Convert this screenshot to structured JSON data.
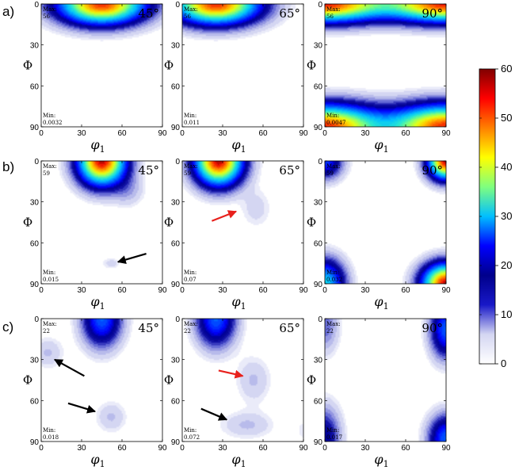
{
  "figure": {
    "row_labels": [
      "a)",
      "b)",
      "c)"
    ],
    "phi_axis_symbol": "Φ",
    "phi1_axis_symbol": "φ",
    "phi1_axis_subscript": "1",
    "x_tick_labels": [
      "0",
      "30",
      "60",
      "90"
    ],
    "y_tick_labels": [
      "0",
      "30",
      "60",
      "90"
    ]
  },
  "colorbar": {
    "min": 0,
    "max": 60,
    "ticks": [
      "0",
      "10",
      "20",
      "30",
      "40",
      "50",
      "60"
    ],
    "stops": [
      "#ffffff",
      "#d4d6f2",
      "#1818c8",
      "#00008b",
      "#0000ff",
      "#00bfff",
      "#7fff7f",
      "#ffff00",
      "#ff8000",
      "#ff0000",
      "#800000"
    ]
  },
  "chart_data": [
    {
      "type": "heatmap",
      "row": "a)",
      "angle": "45°",
      "max_label": "Max:",
      "max_value": "56",
      "min_label": "Min:",
      "min_value": "0.0032",
      "xlim": [
        0,
        90
      ],
      "ylim": [
        0,
        90
      ],
      "peaks": [
        {
          "phi1": 45,
          "Phi": 0,
          "intensity": 56,
          "spread_phi1": 22,
          "spread_Phi": 10
        }
      ],
      "arrows": []
    },
    {
      "type": "heatmap",
      "row": "a)",
      "angle": "65°",
      "max_label": "Max:",
      "max_value": "56",
      "min_label": "Min:",
      "min_value": "0.011",
      "xlim": [
        0,
        90
      ],
      "ylim": [
        0,
        90
      ],
      "peaks": [
        {
          "phi1": 25,
          "Phi": 0,
          "intensity": 56,
          "spread_phi1": 22,
          "spread_Phi": 10
        }
      ],
      "arrows": []
    },
    {
      "type": "heatmap",
      "row": "a)",
      "angle": "90°",
      "max_label": "Max:",
      "max_value": "56",
      "min_label": "Min:",
      "min_value": "0.0047",
      "xlim": [
        0,
        90
      ],
      "ylim": [
        0,
        90
      ],
      "peaks": [
        {
          "phi1": 0,
          "Phi": 0,
          "intensity": 56,
          "spread_phi1": 30,
          "spread_Phi": 9
        },
        {
          "phi1": 90,
          "Phi": 0,
          "intensity": 56,
          "spread_phi1": 30,
          "spread_Phi": 9
        },
        {
          "phi1": 0,
          "Phi": 90,
          "intensity": 56,
          "spread_phi1": 28,
          "spread_Phi": 11
        },
        {
          "phi1": 90,
          "Phi": 90,
          "intensity": 56,
          "spread_phi1": 28,
          "spread_Phi": 11
        }
      ],
      "arrows": []
    },
    {
      "type": "heatmap",
      "row": "b)",
      "angle": "45°",
      "max_label": "Max:",
      "max_value": "59",
      "min_label": "Min:",
      "min_value": "0.015",
      "xlim": [
        0,
        90
      ],
      "ylim": [
        0,
        90
      ],
      "peaks": [
        {
          "phi1": 45,
          "Phi": 0,
          "intensity": 59,
          "spread_phi1": 12,
          "spread_Phi": 12
        },
        {
          "phi1": 65,
          "Phi": 22,
          "intensity": 4,
          "spread_phi1": 8,
          "spread_Phi": 8
        },
        {
          "phi1": 52,
          "Phi": 75,
          "intensity": 3,
          "spread_phi1": 5,
          "spread_Phi": 3
        }
      ],
      "arrows": [
        {
          "color": "black",
          "phi1_tip": 57,
          "Phi_tip": 74,
          "phi1_tail": 78,
          "Phi_tail": 68
        }
      ]
    },
    {
      "type": "heatmap",
      "row": "b)",
      "angle": "65°",
      "max_label": "Max:",
      "max_value": "59",
      "min_label": "Min:",
      "min_value": "0.07",
      "xlim": [
        0,
        90
      ],
      "ylim": [
        0,
        90
      ],
      "peaks": [
        {
          "phi1": 27,
          "Phi": 0,
          "intensity": 59,
          "spread_phi1": 12,
          "spread_Phi": 12
        },
        {
          "phi1": 55,
          "Phi": 35,
          "intensity": 3,
          "spread_phi1": 8,
          "spread_Phi": 10
        }
      ],
      "arrows": [
        {
          "color": "red",
          "phi1_tip": 40,
          "Phi_tip": 37,
          "phi1_tail": 22,
          "Phi_tail": 44
        }
      ]
    },
    {
      "type": "heatmap",
      "row": "b)",
      "angle": "90°",
      "max_label": "Max:",
      "max_value": "59",
      "min_label": "Min:",
      "min_value": "0.032",
      "xlim": [
        0,
        90
      ],
      "ylim": [
        0,
        90
      ],
      "peaks": [
        {
          "phi1": 90,
          "Phi": 0,
          "intensity": 59,
          "spread_phi1": 9,
          "spread_Phi": 9
        },
        {
          "phi1": 0,
          "Phi": 0,
          "intensity": 20,
          "spread_phi1": 9,
          "spread_Phi": 9
        },
        {
          "phi1": 0,
          "Phi": 90,
          "intensity": 30,
          "spread_phi1": 10,
          "spread_Phi": 12
        },
        {
          "phi1": 90,
          "Phi": 90,
          "intensity": 59,
          "spread_phi1": 12,
          "spread_Phi": 10
        }
      ],
      "arrows": []
    },
    {
      "type": "heatmap",
      "row": "c)",
      "angle": "45°",
      "max_label": "Max:",
      "max_value": "22",
      "min_label": "Min:",
      "min_value": "0.018",
      "xlim": [
        0,
        90
      ],
      "ylim": [
        0,
        90
      ],
      "peaks": [
        {
          "phi1": 45,
          "Phi": 0,
          "intensity": 22,
          "spread_phi1": 10,
          "spread_Phi": 14
        },
        {
          "phi1": 5,
          "Phi": 25,
          "intensity": 4,
          "spread_phi1": 8,
          "spread_Phi": 8
        },
        {
          "phi1": 52,
          "Phi": 72,
          "intensity": 4,
          "spread_phi1": 8,
          "spread_Phi": 8
        }
      ],
      "arrows": [
        {
          "color": "black",
          "phi1_tip": 10,
          "Phi_tip": 30,
          "phi1_tail": 32,
          "Phi_tail": 42
        },
        {
          "color": "black",
          "phi1_tip": 40,
          "Phi_tip": 68,
          "phi1_tail": 20,
          "Phi_tail": 62
        }
      ]
    },
    {
      "type": "heatmap",
      "row": "c)",
      "angle": "65°",
      "max_label": "Max:",
      "max_value": "22",
      "min_label": "Min:",
      "min_value": "0.072",
      "xlim": [
        0,
        90
      ],
      "ylim": [
        0,
        90
      ],
      "peaks": [
        {
          "phi1": 25,
          "Phi": 0,
          "intensity": 22,
          "spread_phi1": 10,
          "spread_Phi": 14
        },
        {
          "phi1": 53,
          "Phi": 45,
          "intensity": 4,
          "spread_phi1": 9,
          "spread_Phi": 12
        },
        {
          "phi1": 48,
          "Phi": 78,
          "intensity": 4,
          "spread_phi1": 14,
          "spread_Phi": 7
        },
        {
          "phi1": 90,
          "Phi": 82,
          "intensity": 2,
          "spread_phi1": 4,
          "spread_Phi": 6
        }
      ],
      "arrows": [
        {
          "color": "red",
          "phi1_tip": 45,
          "Phi_tip": 42,
          "phi1_tail": 27,
          "Phi_tail": 38
        },
        {
          "color": "black",
          "phi1_tip": 33,
          "Phi_tip": 74,
          "phi1_tail": 14,
          "Phi_tail": 66
        }
      ]
    },
    {
      "type": "heatmap",
      "row": "c)",
      "angle": "90°",
      "max_label": "Max:",
      "max_value": "22",
      "min_label": "Min:",
      "min_value": "0.017",
      "xlim": [
        0,
        90
      ],
      "ylim": [
        0,
        90
      ],
      "peaks": [
        {
          "phi1": 90,
          "Phi": 8,
          "intensity": 22,
          "spread_phi1": 8,
          "spread_Phi": 14
        },
        {
          "phi1": 0,
          "Phi": 5,
          "intensity": 8,
          "spread_phi1": 7,
          "spread_Phi": 14
        },
        {
          "phi1": 0,
          "Phi": 88,
          "intensity": 14,
          "spread_phi1": 8,
          "spread_Phi": 16
        },
        {
          "phi1": 90,
          "Phi": 88,
          "intensity": 22,
          "spread_phi1": 9,
          "spread_Phi": 12
        }
      ],
      "arrows": []
    }
  ]
}
